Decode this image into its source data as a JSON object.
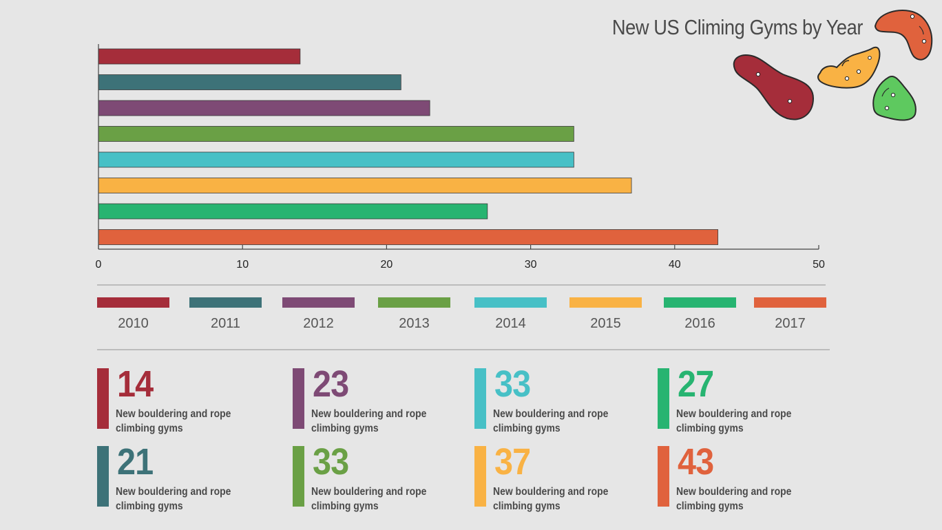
{
  "title": "New US Climing Gyms by Year",
  "colors": {
    "2010": "#a52d3a",
    "2011": "#3d7278",
    "2012": "#7e4a75",
    "2013": "#6aa045",
    "2014": "#47c0c6",
    "2015": "#f9b244",
    "2016": "#27b471",
    "2017": "#e0623d"
  },
  "chart_data": {
    "type": "bar",
    "orientation": "horizontal",
    "categories": [
      "2010",
      "2011",
      "2012",
      "2013",
      "2014",
      "2015",
      "2016",
      "2017"
    ],
    "values": [
      14,
      21,
      23,
      33,
      33,
      37,
      27,
      43
    ],
    "xlim": [
      0,
      50
    ],
    "xticks": [
      "0",
      "10",
      "20",
      "30",
      "40",
      "50"
    ],
    "grid": false,
    "legend": "below"
  },
  "stats": [
    {
      "value": "14",
      "year": "2010",
      "desc": "New bouldering and rope climbing gyms"
    },
    {
      "value": "21",
      "year": "2011",
      "desc": "New bouldering and rope climbing gyms"
    },
    {
      "value": "23",
      "year": "2012",
      "desc": "New bouldering and rope climbing gyms"
    },
    {
      "value": "33",
      "year": "2013",
      "desc": "New bouldering and rope climbing gyms"
    },
    {
      "value": "33",
      "year": "2014",
      "desc": "New bouldering and rope climbing gyms"
    },
    {
      "value": "37",
      "year": "2015",
      "desc": "New bouldering and rope climbing gyms"
    },
    {
      "value": "27",
      "year": "2016",
      "desc": "New bouldering and rope climbing gyms"
    },
    {
      "value": "43",
      "year": "2017",
      "desc": "New bouldering and rope climbing gyms"
    }
  ],
  "decor": {
    "holds": [
      {
        "name": "red-climbing-hold-icon",
        "color": "#a52d3a"
      },
      {
        "name": "yellow-climbing-hold-icon",
        "color": "#f9b244"
      },
      {
        "name": "orange-climbing-hold-icon",
        "color": "#e0623d"
      },
      {
        "name": "green-climbing-hold-icon",
        "color": "#5ec95f"
      }
    ]
  }
}
